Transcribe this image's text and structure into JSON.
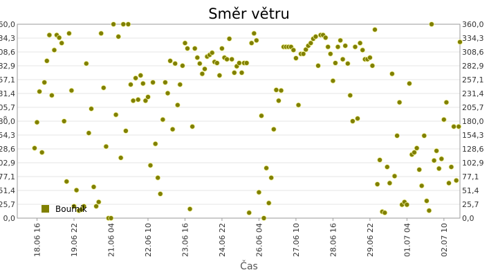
{
  "chart_data": {
    "type": "scatter",
    "title": "Směr větru",
    "xlabel": "Čas",
    "ylabel": "°",
    "ylim": [
      0,
      360
    ],
    "xlim": [
      "2016-06-18 00:00",
      "2016-07-02 23:00"
    ],
    "yticks": [
      "0,0",
      "25,7",
      "51,4",
      "77,1",
      "102,9",
      "128,6",
      "154,3",
      "180,0",
      "205,7",
      "231,4",
      "257,1",
      "282,9",
      "308,6",
      "334,3",
      "360,0"
    ],
    "xticks": [
      {
        "label": "18.06 16",
        "x": "2016-06-18 16:00"
      },
      {
        "label": "19.06 22",
        "x": "2016-06-19 22:00"
      },
      {
        "label": "21.06 04",
        "x": "2016-06-21 04:00"
      },
      {
        "label": "22.06 10",
        "x": "2016-06-22 10:00"
      },
      {
        "label": "23.06 16",
        "x": "2016-06-23 16:00"
      },
      {
        "label": "24.06 22",
        "x": "2016-06-24 22:00"
      },
      {
        "label": "26.06 04",
        "x": "2016-06-26 04:00"
      },
      {
        "label": "27.06 10",
        "x": "2016-06-27 10:00"
      },
      {
        "label": "28.06 16",
        "x": "2016-06-28 16:00"
      },
      {
        "label": "29.06 22",
        "x": "2016-06-29 22:00"
      },
      {
        "label": "01.07 04",
        "x": "2016-07-01 04:00"
      },
      {
        "label": "02.07 10",
        "x": "2016-07-02 10:00"
      }
    ],
    "grid": true,
    "legend_position": "bottom-left",
    "series": [
      {
        "name": "Bouřník",
        "color": "#808000",
        "points": [
          [
            "2016-06-18 14:00",
            130
          ],
          [
            "2016-06-18 16:00",
            178
          ],
          [
            "2016-06-18 18:00",
            235
          ],
          [
            "2016-06-18 20:00",
            122
          ],
          [
            "2016-06-18 22:00",
            252
          ],
          [
            "2016-06-19 00:00",
            292
          ],
          [
            "2016-06-19 02:00",
            340
          ],
          [
            "2016-06-19 04:00",
            228
          ],
          [
            "2016-06-19 06:00",
            312
          ],
          [
            "2016-06-19 08:00",
            340
          ],
          [
            "2016-06-19 10:00",
            335
          ],
          [
            "2016-06-19 12:00",
            325
          ],
          [
            "2016-06-19 14:00",
            180
          ],
          [
            "2016-06-19 16:00",
            68
          ],
          [
            "2016-06-19 18:00",
            343
          ],
          [
            "2016-06-19 20:00",
            237
          ],
          [
            "2016-06-19 22:00",
            22
          ],
          [
            "2016-06-20 00:00",
            52
          ],
          [
            "2016-06-20 02:00",
            14
          ],
          [
            "2016-06-20 04:00",
            16
          ],
          [
            "2016-06-20 06:00",
            22
          ],
          [
            "2016-06-20 08:00",
            287
          ],
          [
            "2016-06-20 10:00",
            158
          ],
          [
            "2016-06-20 12:00",
            203
          ],
          [
            "2016-06-20 14:00",
            58
          ],
          [
            "2016-06-20 16:00",
            22
          ],
          [
            "2016-06-20 18:00",
            30
          ],
          [
            "2016-06-20 20:00",
            343
          ],
          [
            "2016-06-20 22:00",
            242
          ],
          [
            "2016-06-21 00:00",
            133
          ],
          [
            "2016-06-21 02:00",
            0
          ],
          [
            "2016-06-21 04:00",
            0
          ],
          [
            "2016-06-21 06:00",
            360
          ],
          [
            "2016-06-21 08:00",
            192
          ],
          [
            "2016-06-21 10:00",
            337
          ],
          [
            "2016-06-21 12:00",
            112
          ],
          [
            "2016-06-21 14:00",
            360
          ],
          [
            "2016-06-21 16:00",
            162
          ],
          [
            "2016-06-21 18:00",
            360
          ],
          [
            "2016-06-21 20:00",
            248
          ],
          [
            "2016-06-21 22:00",
            218
          ],
          [
            "2016-06-22 00:00",
            260
          ],
          [
            "2016-06-22 02:00",
            220
          ],
          [
            "2016-06-22 04:00",
            265
          ],
          [
            "2016-06-22 06:00",
            250
          ],
          [
            "2016-06-22 08:00",
            218
          ],
          [
            "2016-06-22 10:00",
            225
          ],
          [
            "2016-06-22 12:00",
            98
          ],
          [
            "2016-06-22 14:00",
            252
          ],
          [
            "2016-06-22 16:00",
            138
          ],
          [
            "2016-06-22 18:00",
            75
          ],
          [
            "2016-06-22 20:00",
            45
          ],
          [
            "2016-06-22 22:00",
            183
          ],
          [
            "2016-06-23 00:00",
            252
          ],
          [
            "2016-06-23 02:00",
            232
          ],
          [
            "2016-06-23 04:00",
            292
          ],
          [
            "2016-06-23 06:00",
            165
          ],
          [
            "2016-06-23 08:00",
            287
          ],
          [
            "2016-06-23 10:00",
            210
          ],
          [
            "2016-06-23 12:00",
            248
          ],
          [
            "2016-06-23 14:00",
            283
          ],
          [
            "2016-06-23 16:00",
            325
          ],
          [
            "2016-06-23 18:00",
            315
          ],
          [
            "2016-06-23 20:00",
            17
          ],
          [
            "2016-06-23 22:00",
            170
          ],
          [
            "2016-06-24 00:00",
            315
          ],
          [
            "2016-06-24 02:00",
            298
          ],
          [
            "2016-06-24 04:00",
            287
          ],
          [
            "2016-06-24 06:00",
            268
          ],
          [
            "2016-06-24 08:00",
            277
          ],
          [
            "2016-06-24 10:00",
            300
          ],
          [
            "2016-06-24 12:00",
            303
          ],
          [
            "2016-06-24 14:00",
            307
          ],
          [
            "2016-06-24 16:00",
            290
          ],
          [
            "2016-06-24 18:00",
            288
          ],
          [
            "2016-06-24 20:00",
            265
          ],
          [
            "2016-06-24 22:00",
            315
          ],
          [
            "2016-06-25 00:00",
            298
          ],
          [
            "2016-06-25 02:00",
            295
          ],
          [
            "2016-06-25 04:00",
            333
          ],
          [
            "2016-06-25 06:00",
            295
          ],
          [
            "2016-06-25 08:00",
            270
          ],
          [
            "2016-06-25 10:00",
            282
          ],
          [
            "2016-06-25 12:00",
            288
          ],
          [
            "2016-06-25 14:00",
            270
          ],
          [
            "2016-06-25 16:00",
            288
          ],
          [
            "2016-06-25 18:00",
            288
          ],
          [
            "2016-06-25 20:00",
            10
          ],
          [
            "2016-06-25 22:00",
            325
          ],
          [
            "2016-06-26 00:00",
            343
          ],
          [
            "2016-06-26 02:00",
            330
          ],
          [
            "2016-06-26 04:00",
            48
          ],
          [
            "2016-06-26 06:00",
            190
          ],
          [
            "2016-06-26 08:00",
            0
          ],
          [
            "2016-06-26 10:00",
            93
          ],
          [
            "2016-06-26 12:00",
            28
          ],
          [
            "2016-06-26 14:00",
            75
          ],
          [
            "2016-06-26 16:00",
            165
          ],
          [
            "2016-06-26 18:00",
            238
          ],
          [
            "2016-06-26 20:00",
            218
          ],
          [
            "2016-06-26 22:00",
            237
          ],
          [
            "2016-06-27 00:00",
            318
          ],
          [
            "2016-06-27 02:00",
            318
          ],
          [
            "2016-06-27 04:00",
            318
          ],
          [
            "2016-06-27 06:00",
            318
          ],
          [
            "2016-06-27 08:00",
            312
          ],
          [
            "2016-06-27 10:00",
            297
          ],
          [
            "2016-06-27 12:00",
            210
          ],
          [
            "2016-06-27 14:00",
            305
          ],
          [
            "2016-06-27 16:00",
            305
          ],
          [
            "2016-06-27 18:00",
            313
          ],
          [
            "2016-06-27 20:00",
            320
          ],
          [
            "2016-06-27 22:00",
            325
          ],
          [
            "2016-06-28 00:00",
            333
          ],
          [
            "2016-06-28 02:00",
            337
          ],
          [
            "2016-06-28 04:00",
            283
          ],
          [
            "2016-06-28 06:00",
            340
          ],
          [
            "2016-06-28 08:00",
            340
          ],
          [
            "2016-06-28 10:00",
            335
          ],
          [
            "2016-06-28 12:00",
            318
          ],
          [
            "2016-06-28 14:00",
            305
          ],
          [
            "2016-06-28 16:00",
            255
          ],
          [
            "2016-06-28 18:00",
            288
          ],
          [
            "2016-06-28 20:00",
            318
          ],
          [
            "2016-06-28 22:00",
            330
          ],
          [
            "2016-06-29 00:00",
            295
          ],
          [
            "2016-06-29 02:00",
            320
          ],
          [
            "2016-06-29 04:00",
            287
          ],
          [
            "2016-06-29 06:00",
            228
          ],
          [
            "2016-06-29 08:00",
            180
          ],
          [
            "2016-06-29 10:00",
            318
          ],
          [
            "2016-06-29 12:00",
            185
          ],
          [
            "2016-06-29 14:00",
            325
          ],
          [
            "2016-06-29 16:00",
            312
          ],
          [
            "2016-06-29 18:00",
            295
          ],
          [
            "2016-06-29 20:00",
            295
          ],
          [
            "2016-06-29 22:00",
            298
          ],
          [
            "2016-06-30 00:00",
            283
          ],
          [
            "2016-06-30 02:00",
            350
          ],
          [
            "2016-06-30 04:00",
            63
          ],
          [
            "2016-06-30 06:00",
            108
          ],
          [
            "2016-06-30 08:00",
            12
          ],
          [
            "2016-06-30 10:00",
            10
          ],
          [
            "2016-06-30 12:00",
            95
          ],
          [
            "2016-06-30 14:00",
            65
          ],
          [
            "2016-06-30 16:00",
            268
          ],
          [
            "2016-06-30 18:00",
            78
          ],
          [
            "2016-06-30 20:00",
            153
          ],
          [
            "2016-06-30 22:00",
            215
          ],
          [
            "2016-07-01 00:00",
            25
          ],
          [
            "2016-07-01 02:00",
            30
          ],
          [
            "2016-07-01 04:00",
            25
          ],
          [
            "2016-07-01 06:00",
            250
          ],
          [
            "2016-07-01 08:00",
            118
          ],
          [
            "2016-07-01 10:00",
            122
          ],
          [
            "2016-07-01 12:00",
            130
          ],
          [
            "2016-07-01 14:00",
            90
          ],
          [
            "2016-07-01 16:00",
            60
          ],
          [
            "2016-07-01 18:00",
            153
          ],
          [
            "2016-07-01 20:00",
            32
          ],
          [
            "2016-07-01 22:00",
            14
          ],
          [
            "2016-07-02 00:00",
            360
          ],
          [
            "2016-07-02 02:00",
            107
          ],
          [
            "2016-07-02 04:00",
            125
          ],
          [
            "2016-07-02 06:00",
            92
          ],
          [
            "2016-07-02 08:00",
            110
          ],
          [
            "2016-07-02 10:00",
            183
          ],
          [
            "2016-07-02 12:00",
            215
          ],
          [
            "2016-07-02 14:00",
            65
          ],
          [
            "2016-07-02 16:00",
            95
          ],
          [
            "2016-07-02 18:00",
            170
          ],
          [
            "2016-07-02 20:00",
            70
          ],
          [
            "2016-07-02 22:00",
            170
          ],
          [
            "2016-07-02 23:00",
            327
          ]
        ]
      }
    ]
  }
}
